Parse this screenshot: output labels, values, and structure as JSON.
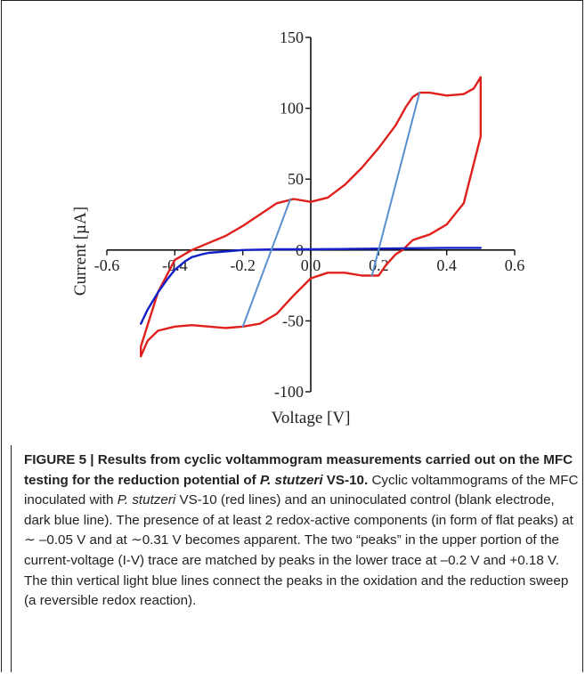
{
  "chart_data": {
    "type": "line",
    "title": "",
    "xlabel": "Voltage [V]",
    "ylabel": "Current [µA]",
    "xlim": [
      -0.6,
      0.6
    ],
    "ylim": [
      -100,
      150
    ],
    "xticks": [
      -0.6,
      -0.4,
      -0.2,
      0.0,
      0.2,
      0.4,
      0.6
    ],
    "xtick_labels": [
      "-0.6",
      "-0.4",
      "-0.2",
      "0.0",
      "0.2",
      "0.4",
      "0.6"
    ],
    "yticks": [
      -100,
      -50,
      0,
      50,
      100,
      150
    ],
    "ytick_labels": [
      "-100",
      "-50",
      "0",
      "50",
      "100",
      "150"
    ],
    "grid": false,
    "series": [
      {
        "color": "#e0201c",
        "x": [
          -0.5,
          -0.45,
          -0.4,
          -0.35,
          -0.3,
          -0.25,
          -0.2,
          -0.15,
          -0.1,
          -0.05,
          0.0,
          0.05,
          0.1,
          0.15,
          0.2,
          0.25,
          0.28,
          0.3,
          0.32,
          0.35,
          0.4,
          0.45,
          0.48,
          0.5,
          0.5,
          0.45,
          0.4,
          0.35,
          0.3,
          0.27,
          0.25,
          0.22,
          0.2,
          0.15,
          0.1,
          0.05,
          0.0,
          -0.05,
          -0.1,
          -0.15,
          -0.2,
          -0.25,
          -0.3,
          -0.35,
          -0.4,
          -0.45,
          -0.48,
          -0.5,
          -0.5
        ],
        "y": [
          -68,
          -30,
          -7,
          0,
          5,
          10,
          17,
          25,
          33,
          36,
          34,
          37,
          46,
          58,
          72,
          88,
          101,
          108,
          111,
          111,
          109,
          110,
          114,
          122,
          80,
          33,
          18,
          11,
          7,
          0,
          -3,
          -11,
          -18,
          -18,
          -16,
          -16,
          -20,
          -32,
          -45,
          -52,
          -54,
          -55,
          -54,
          -53,
          -54,
          -57,
          -64,
          -75,
          -68
        ]
      },
      {
        "color": "#1420c8",
        "x": [
          -0.5,
          -0.48,
          -0.45,
          -0.42,
          -0.4,
          -0.37,
          -0.35,
          -0.32,
          -0.3,
          -0.25,
          -0.2,
          -0.1,
          0.0,
          0.2,
          0.4,
          0.5
        ],
        "y": [
          -52,
          -42,
          -30,
          -20,
          -14,
          -8,
          -5,
          -3,
          -2,
          -1,
          0,
          0.5,
          0.5,
          1,
          1.5,
          1.5
        ]
      },
      {
        "color": "#5a8fd0",
        "x": [
          -0.06,
          -0.2
        ],
        "y": [
          36,
          -54
        ]
      },
      {
        "color": "#5a8fd0",
        "x": [
          0.32,
          0.18
        ],
        "y": [
          111,
          -18
        ]
      }
    ]
  },
  "caption": {
    "title_prefix": "FIGURE 5 | Results from cyclic voltammogram measurements carried out on the MFC testing for the reduction potential of ",
    "title_species": "P. stutzeri",
    "title_suffix": " VS-10.",
    "body_1": "Cyclic voltammograms of the MFC inoculated with ",
    "body_species": "P. stutzeri",
    "body_2": " VS-10 (red lines) and an uninoculated control (blank electrode, dark blue line). The presence of at least 2 redox-active components (in form of flat peaks) at ∼ –0.05 V and at ∼0.31 V becomes apparent. The two “peaks” in the upper portion of the current-voltage (I-V) trace are matched by peaks in the lower trace at –0.2 V and +0.18 V. The thin vertical light blue lines connect the peaks in the oxidation and the reduction sweep (a reversible redox reaction)."
  }
}
